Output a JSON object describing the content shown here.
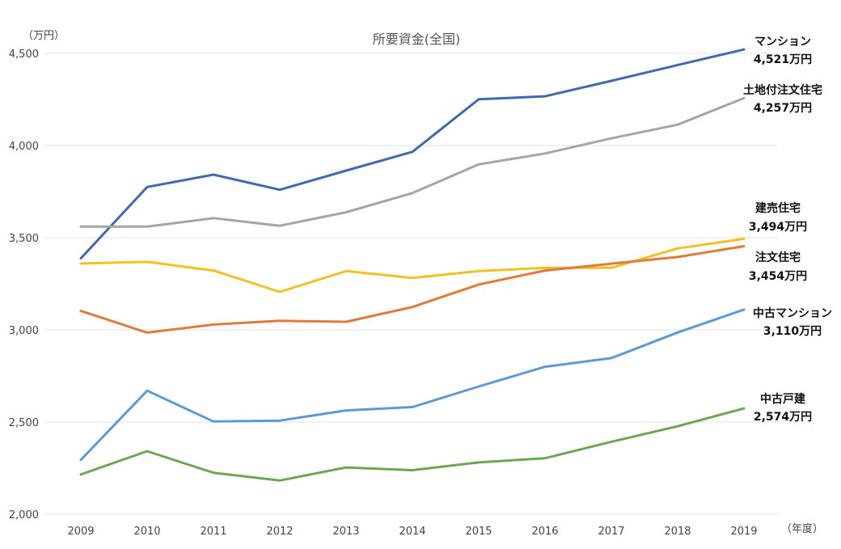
{
  "chart_data": {
    "type": "line",
    "title": "所要資金(全国)",
    "y_unit": "（万円）",
    "x_unit": "（年度）",
    "x": [
      "2009",
      "2010",
      "2011",
      "2012",
      "2013",
      "2014",
      "2015",
      "2016",
      "2017",
      "2018",
      "2019"
    ],
    "ylim": [
      2000,
      4500
    ],
    "yticks": [
      2000,
      2500,
      3000,
      3500,
      4000,
      4500
    ],
    "ytick_labels": [
      "2,000",
      "2,500",
      "3,000",
      "3,500",
      "4,000",
      "4,500"
    ],
    "grid": true,
    "legend": "end-labels",
    "series": [
      {
        "name": "マンション",
        "end_label": "4,521万円",
        "color": "#4169b0",
        "values": [
          3388,
          3775,
          3842,
          3760,
          3864,
          3966,
          4251,
          4267,
          4351,
          4437,
          4521
        ]
      },
      {
        "name": "土地付注文住宅",
        "end_label": "4,257万円",
        "color": "#a5a5a5",
        "values": [
          3560,
          3560,
          3606,
          3565,
          3638,
          3742,
          3898,
          3957,
          4039,
          4113,
          4257
        ]
      },
      {
        "name": "建売住宅",
        "end_label": "3,494万円",
        "color": "#f5c021",
        "values": [
          3360,
          3369,
          3322,
          3206,
          3319,
          3282,
          3319,
          3337,
          3337,
          3442,
          3494
        ]
      },
      {
        "name": "注文住宅",
        "end_label": "3,454万円",
        "color": "#e07b39",
        "values": [
          3103,
          2985,
          3029,
          3049,
          3044,
          3124,
          3246,
          3322,
          3359,
          3395,
          3454
        ]
      },
      {
        "name": "中古マンション",
        "end_label": "3,110万円",
        "color": "#5b9bd5",
        "values": [
          2295,
          2670,
          2503,
          2508,
          2563,
          2581,
          2693,
          2800,
          2847,
          2986,
          3110
        ]
      },
      {
        "name": "中古戸建",
        "end_label": "2,574万円",
        "color": "#6aa84f",
        "values": [
          2216,
          2342,
          2225,
          2183,
          2254,
          2239,
          2281,
          2304,
          2393,
          2477,
          2574
        ]
      }
    ]
  }
}
